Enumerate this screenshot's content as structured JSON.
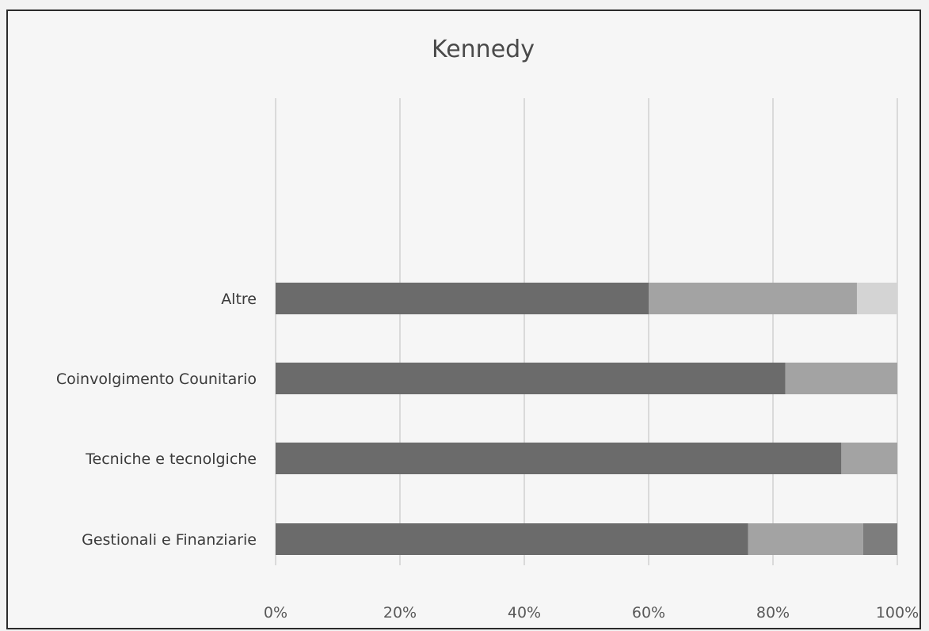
{
  "chart_data": {
    "type": "bar",
    "orientation": "horizontal",
    "stacked": "100%",
    "title": "Kennedy",
    "categories": [
      "Altre",
      "Coinvolgimento Counitario",
      "Tecniche e tecnolgiche",
      "Gestionali e Finanziarie"
    ],
    "series": [
      {
        "values": [
          60,
          82,
          91,
          76
        ],
        "color": "#6b6b6b"
      },
      {
        "values": [
          33.5,
          18,
          9,
          18.5
        ],
        "color": "#a3a3a3"
      },
      {
        "values": [
          6.5,
          0,
          0,
          0
        ],
        "color": "#d4d4d4"
      },
      {
        "values": [
          0,
          0,
          0,
          5.5
        ],
        "color": "#7d7d7d"
      }
    ],
    "x_ticks": [
      "0%",
      "20%",
      "40%",
      "60%",
      "80%",
      "100%"
    ],
    "xlim": [
      0,
      100
    ],
    "grid": true,
    "legend": "none"
  }
}
